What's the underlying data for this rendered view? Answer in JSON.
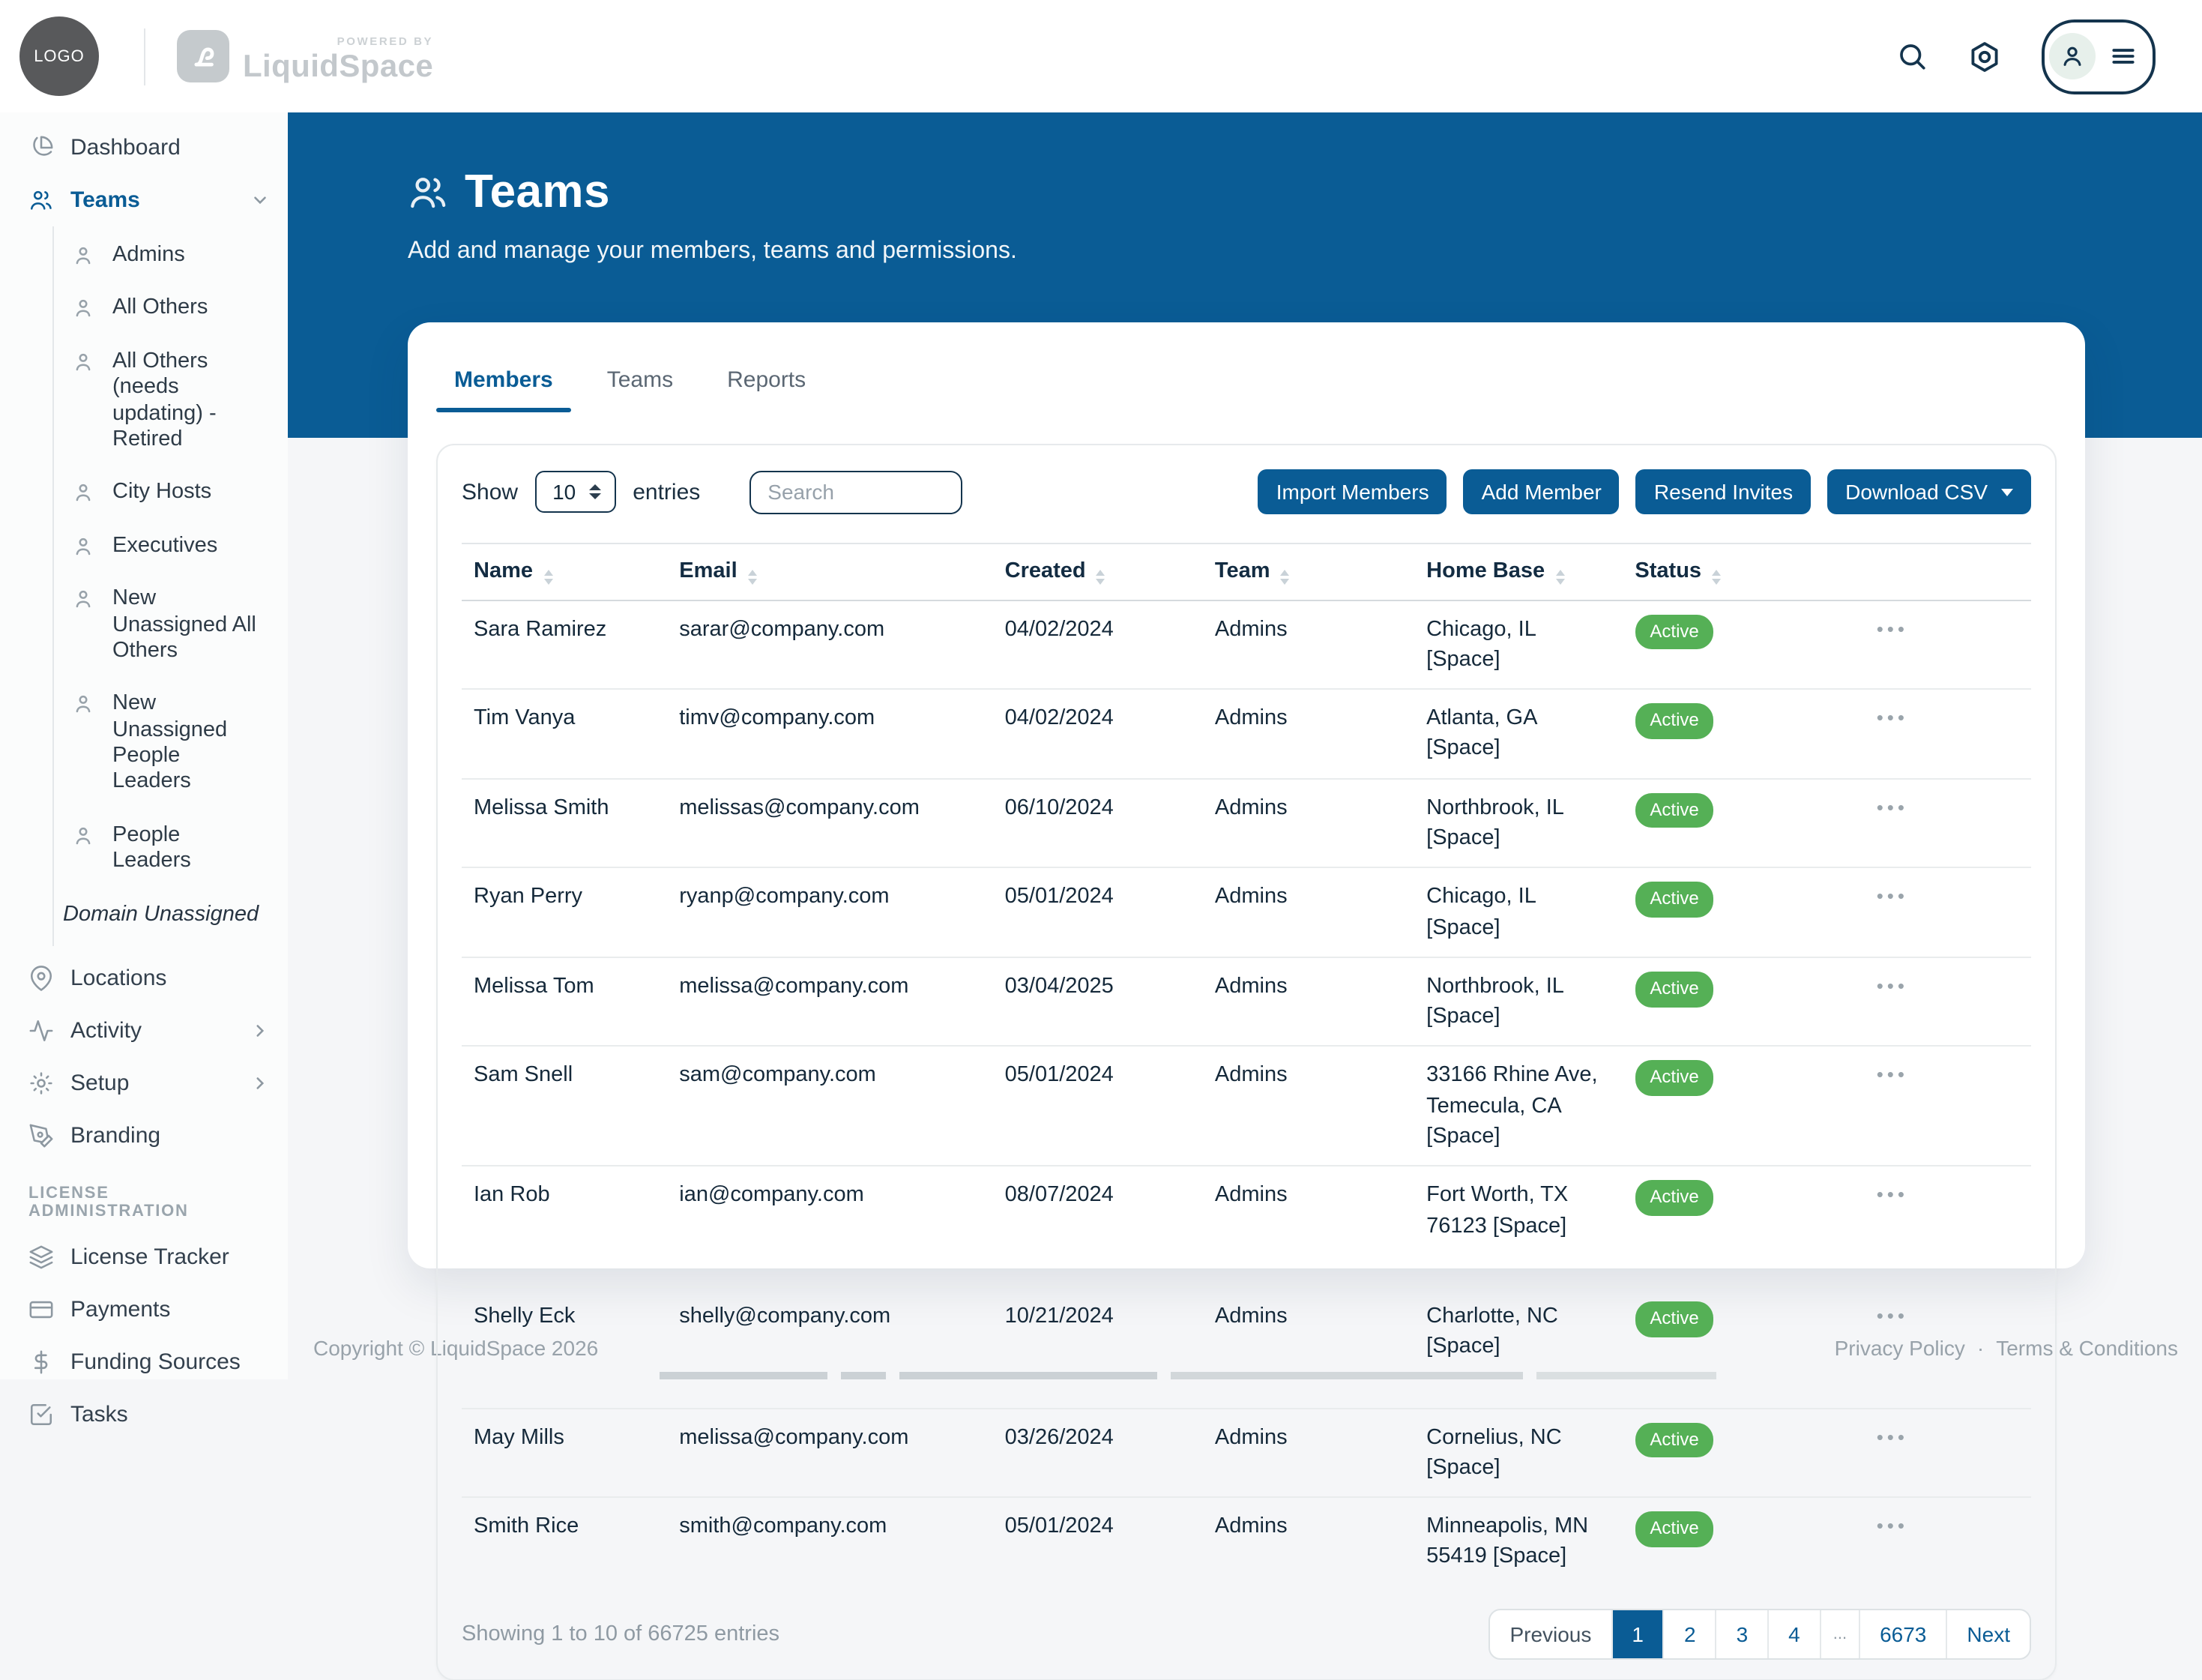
{
  "topbar": {
    "logo_text": "LOGO",
    "powered_by": "POWERED BY",
    "brand": "LiquidSpace"
  },
  "header": {
    "title": "Teams",
    "subtitle": "Add and manage your members, teams and permissions."
  },
  "tabs": [
    {
      "label": "Members",
      "active": true
    },
    {
      "label": "Teams",
      "active": false
    },
    {
      "label": "Reports",
      "active": false
    }
  ],
  "toolbar": {
    "show_label": "Show",
    "page_size": "10",
    "entries_label": "entries",
    "search_placeholder": "Search",
    "buttons": [
      {
        "label": "Import Members",
        "caret": false
      },
      {
        "label": "Add Member",
        "caret": false
      },
      {
        "label": "Resend Invites",
        "caret": false
      },
      {
        "label": "Download CSV",
        "caret": true
      }
    ]
  },
  "table": {
    "columns": [
      "Name",
      "Email",
      "Created",
      "Team",
      "Home Base",
      "Status"
    ],
    "rows": [
      {
        "name": "Sara Ramirez",
        "email": "sarar@company.com",
        "created": "04/02/2024",
        "team": "Admins",
        "home_base": "Chicago, IL [Space]",
        "status": "Active",
        "tall": false
      },
      {
        "name": "Tim Vanya",
        "email": "timv@company.com",
        "created": "04/02/2024",
        "team": "Admins",
        "home_base": "Atlanta, GA [Space]",
        "status": "Active",
        "tall": false
      },
      {
        "name": "Melissa Smith",
        "email": "melissas@company.com",
        "created": "06/10/2024",
        "team": "Admins",
        "home_base": "Northbrook, IL [Space]",
        "status": "Active",
        "tall": false
      },
      {
        "name": "Ryan Perry",
        "email": "ryanp@company.com",
        "created": "05/01/2024",
        "team": "Admins",
        "home_base": "Chicago, IL [Space]",
        "status": "Active",
        "tall": false
      },
      {
        "name": "Melissa Tom",
        "email": "melissa@company.com",
        "created": "03/04/2025",
        "team": "Admins",
        "home_base": "Northbrook, IL [Space]",
        "status": "Active",
        "tall": false
      },
      {
        "name": "Sam Snell",
        "email": "sam@company.com",
        "created": "05/01/2024",
        "team": "Admins",
        "home_base": "33166 Rhine Ave, Temecula, CA [Space]",
        "status": "Active",
        "tall": false
      },
      {
        "name": "Ian Rob",
        "email": "ian@company.com",
        "created": "08/07/2024",
        "team": "Admins",
        "home_base": "Fort Worth, TX 76123 [Space]",
        "status": "Active",
        "tall": true
      },
      {
        "name": "Shelly Eck",
        "email": "shelly@company.com",
        "created": "10/21/2024",
        "team": "Admins",
        "home_base": "Charlotte, NC [Space]",
        "status": "Active",
        "tall": true
      },
      {
        "name": "May Mills",
        "email": "melissa@company.com",
        "created": "03/26/2024",
        "team": "Admins",
        "home_base": "Cornelius, NC [Space]",
        "status": "Active",
        "tall": false
      },
      {
        "name": "Smith Rice",
        "email": "smith@company.com",
        "created": "05/01/2024",
        "team": "Admins",
        "home_base": "Minneapolis, MN 55419 [Space]",
        "status": "Active",
        "tall": false
      }
    ]
  },
  "summary": "Showing 1 to 10 of 66725 entries",
  "pagination": {
    "items": [
      {
        "label": "Previous",
        "kind": "prev",
        "active": false
      },
      {
        "label": "1",
        "kind": "page",
        "active": true
      },
      {
        "label": "2",
        "kind": "page",
        "active": false
      },
      {
        "label": "3",
        "kind": "page",
        "active": false
      },
      {
        "label": "4",
        "kind": "page",
        "active": false
      },
      {
        "label": "...",
        "kind": "ellipsis",
        "active": false
      },
      {
        "label": "6673",
        "kind": "page",
        "active": false
      },
      {
        "label": "Next",
        "kind": "next",
        "active": false
      }
    ]
  },
  "footer": {
    "copyright": "Copyright © LiquidSpace 2026",
    "links": [
      "Privacy Policy",
      "Terms & Conditions"
    ],
    "separator": "·"
  },
  "sidebar": {
    "items": [
      {
        "type": "item",
        "icon": "dashboard-icon",
        "label": "Dashboard",
        "active": false,
        "chevron": ""
      },
      {
        "type": "item",
        "icon": "teams-icon",
        "label": "Teams",
        "active": true,
        "chevron": "down"
      },
      {
        "type": "subitem",
        "icon": "user-icon",
        "label": "Admins"
      },
      {
        "type": "subitem",
        "icon": "user-icon",
        "label": "All Others"
      },
      {
        "type": "subitem",
        "icon": "user-icon",
        "label": "All Others (needs updating) - Retired"
      },
      {
        "type": "subitem",
        "icon": "user-icon",
        "label": "City Hosts"
      },
      {
        "type": "subitem",
        "icon": "user-icon",
        "label": "Executives"
      },
      {
        "type": "subitem",
        "icon": "user-icon",
        "label": "New Unassigned All Others"
      },
      {
        "type": "subitem",
        "icon": "user-icon",
        "label": "New Unassigned People Leaders"
      },
      {
        "type": "subitem",
        "icon": "user-icon",
        "label": "People Leaders"
      },
      {
        "type": "subplain",
        "icon": "",
        "label": "Domain Unassigned"
      },
      {
        "type": "item",
        "icon": "location-icon",
        "label": "Locations",
        "active": false,
        "chevron": ""
      },
      {
        "type": "item",
        "icon": "activity-icon",
        "label": "Activity",
        "active": false,
        "chevron": "right"
      },
      {
        "type": "item",
        "icon": "setup-icon",
        "label": "Setup",
        "active": false,
        "chevron": "right"
      },
      {
        "type": "item",
        "icon": "branding-icon",
        "label": "Branding",
        "active": false,
        "chevron": ""
      },
      {
        "type": "section",
        "icon": "",
        "label": "LICENSE ADMINISTRATION"
      },
      {
        "type": "item",
        "icon": "license-tracker-icon",
        "label": "License Tracker",
        "active": false,
        "chevron": ""
      },
      {
        "type": "item",
        "icon": "payments-icon",
        "label": "Payments",
        "active": false,
        "chevron": ""
      },
      {
        "type": "item",
        "icon": "funding-icon",
        "label": "Funding Sources",
        "active": false,
        "chevron": ""
      },
      {
        "type": "item",
        "icon": "tasks-icon",
        "label": "Tasks",
        "active": false,
        "chevron": ""
      }
    ]
  },
  "colors": {
    "primary_blue": "#0a5c95",
    "status_green": "#55b056",
    "navy_ink": "#14344d"
  }
}
